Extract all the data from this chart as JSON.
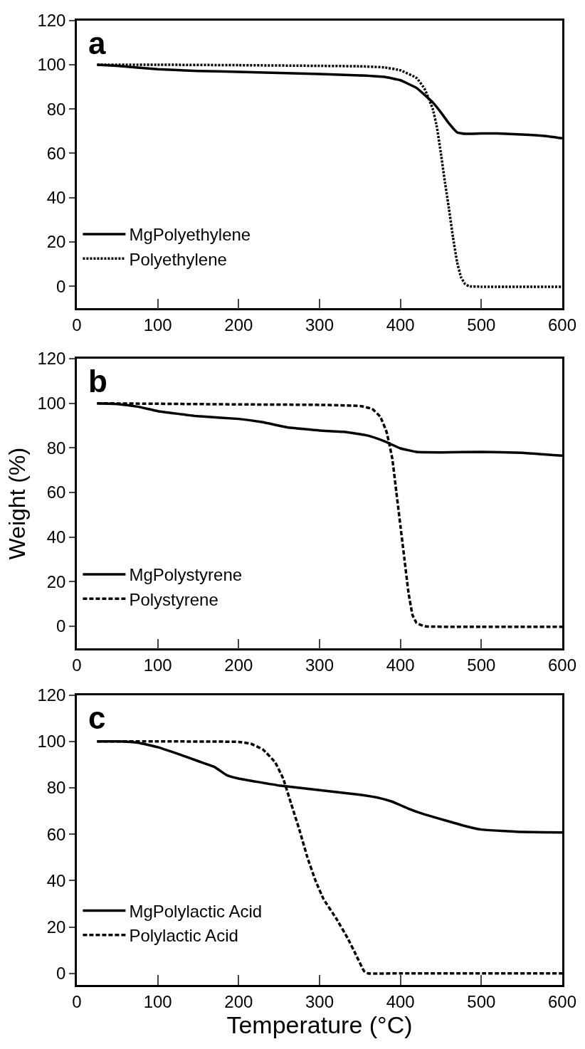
{
  "chart_data": [
    {
      "type": "line",
      "annotations": [
        "a"
      ],
      "xlim": [
        0,
        600
      ],
      "ylim": [
        -10,
        120
      ],
      "xticks": [
        0,
        100,
        200,
        300,
        400,
        500,
        600
      ],
      "yticks": [
        0,
        20,
        40,
        60,
        80,
        100,
        120
      ],
      "legend": "bottom left",
      "grid": false,
      "series": [
        {
          "name": "MgPolyethylene",
          "color": "#000000",
          "line_style": "solid",
          "x": [
            25,
            50,
            100,
            150,
            200,
            250,
            300,
            350,
            380,
            400,
            420,
            440,
            450,
            460,
            470,
            480,
            500,
            520,
            550,
            580,
            600
          ],
          "values": [
            100,
            99.5,
            98,
            97.2,
            96.8,
            96.3,
            95.8,
            95.2,
            94.5,
            93,
            89.5,
            83,
            78.5,
            73.5,
            69.5,
            68.8,
            69,
            69,
            68.5,
            67.8,
            66.8
          ]
        },
        {
          "name": "Polyethylene",
          "color": "#000000",
          "line_style": "dotted",
          "x": [
            25,
            100,
            200,
            300,
            350,
            380,
            400,
            420,
            430,
            440,
            445,
            450,
            455,
            460,
            465,
            470,
            475,
            480,
            485,
            500,
            600
          ],
          "values": [
            100,
            100,
            99.8,
            99.5,
            99.3,
            98.8,
            97.5,
            94,
            89,
            80,
            72,
            60,
            47,
            35,
            22,
            11,
            4,
            1,
            0,
            -0.2,
            -0.2
          ]
        }
      ]
    },
    {
      "type": "line",
      "annotations": [
        "b"
      ],
      "ylabel": "Weight (%)",
      "xlim": [
        0,
        600
      ],
      "ylim": [
        -10,
        120
      ],
      "xticks": [
        0,
        100,
        200,
        300,
        400,
        500,
        600
      ],
      "yticks": [
        0,
        20,
        40,
        60,
        80,
        100,
        120
      ],
      "legend": "bottom left",
      "grid": false,
      "series": [
        {
          "name": "MgPolystyrene",
          "color": "#000000",
          "line_style": "solid",
          "x": [
            25,
            50,
            75,
            100,
            150,
            200,
            230,
            260,
            300,
            330,
            360,
            380,
            400,
            420,
            450,
            500,
            550,
            600
          ],
          "values": [
            100,
            99.7,
            98.5,
            96.5,
            94.2,
            93,
            91.5,
            89.2,
            87.8,
            87.2,
            85.5,
            83,
            79.8,
            78.2,
            78,
            78.2,
            77.8,
            76.5
          ]
        },
        {
          "name": "Polystyrene",
          "color": "#000000",
          "line_style": "dashed",
          "x": [
            25,
            100,
            200,
            300,
            350,
            365,
            375,
            383,
            390,
            395,
            400,
            405,
            410,
            415,
            420,
            430,
            500,
            600
          ],
          "values": [
            100,
            99.8,
            99.5,
            99.3,
            98.8,
            97.5,
            94,
            87,
            75,
            60,
            45,
            30,
            15,
            5,
            1.5,
            0,
            -0.2,
            -0.2
          ]
        }
      ]
    },
    {
      "type": "line",
      "annotations": [
        "c"
      ],
      "xlabel": "Temperature (°C)",
      "xlim": [
        0,
        600
      ],
      "ylim": [
        -5,
        120
      ],
      "xticks": [
        0,
        100,
        200,
        300,
        400,
        500,
        600
      ],
      "yticks": [
        0,
        20,
        40,
        60,
        80,
        100,
        120
      ],
      "legend": "bottom left",
      "grid": false,
      "series": [
        {
          "name": "MgPolylactic Acid",
          "color": "#000000",
          "line_style": "solid",
          "x": [
            25,
            50,
            75,
            100,
            130,
            150,
            170,
            185,
            200,
            250,
            300,
            350,
            375,
            390,
            410,
            430,
            460,
            480,
            500,
            550,
            600
          ],
          "values": [
            100,
            100,
            99.5,
            97.5,
            94,
            91.5,
            89,
            85.5,
            84,
            81,
            79,
            77,
            75.5,
            74,
            71,
            68.5,
            65.5,
            63.5,
            62,
            61,
            60.7
          ]
        },
        {
          "name": "Polylactic Acid",
          "color": "#000000",
          "line_style": "dashed",
          "x": [
            25,
            100,
            200,
            215,
            230,
            245,
            255,
            265,
            275,
            285,
            295,
            305,
            320,
            335,
            345,
            355,
            360,
            400,
            600
          ],
          "values": [
            100,
            100,
            99.8,
            99,
            96.5,
            91,
            84,
            73,
            62,
            50,
            40,
            32,
            24,
            15,
            8,
            1,
            0,
            0,
            0
          ]
        }
      ]
    }
  ]
}
